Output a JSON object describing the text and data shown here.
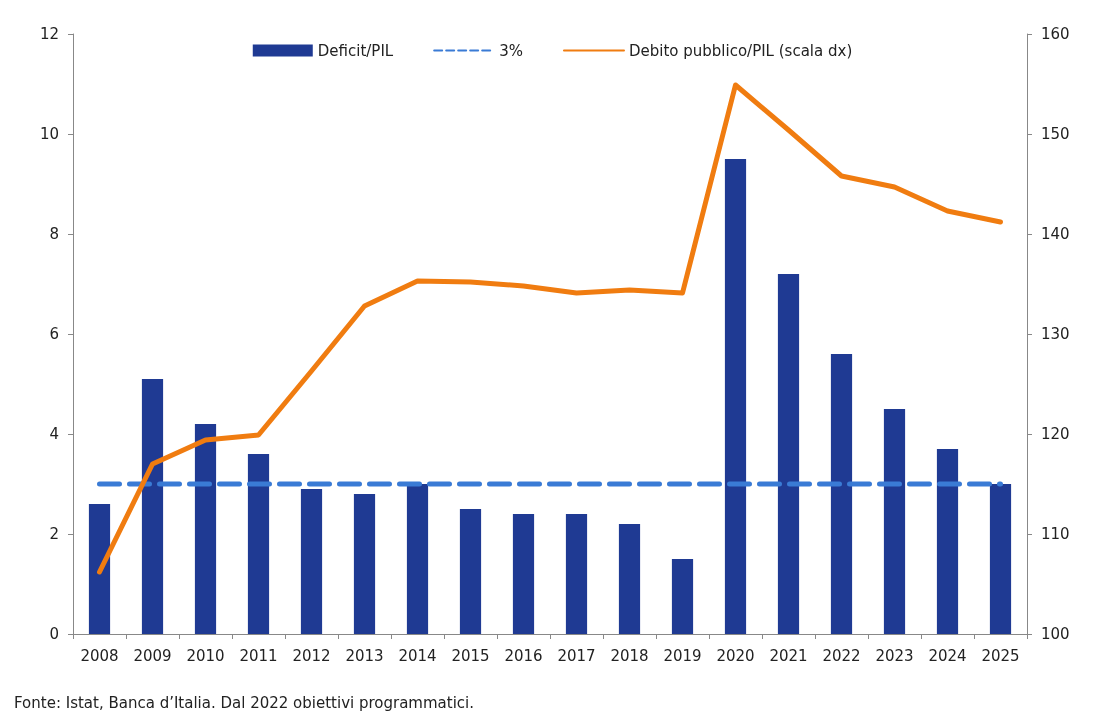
{
  "chart_data": {
    "type": "bar",
    "categories": [
      "2008",
      "2009",
      "2010",
      "2011",
      "2012",
      "2013",
      "2014",
      "2015",
      "2016",
      "2017",
      "2018",
      "2019",
      "2020",
      "2021",
      "2022",
      "2023",
      "2024",
      "2025"
    ],
    "series": [
      {
        "name": "Deficit/PIL",
        "color": "#1f3a93",
        "values": [
          2.6,
          5.1,
          4.2,
          3.6,
          2.9,
          2.8,
          3.0,
          2.5,
          2.4,
          2.4,
          2.2,
          1.5,
          9.5,
          7.2,
          5.6,
          4.5,
          3.7,
          3.0
        ]
      },
      {
        "name": "3%",
        "type": "line",
        "color": "#3a7bd5",
        "line_style": "dashed",
        "values": [
          3,
          3,
          3,
          3,
          3,
          3,
          3,
          3,
          3,
          3,
          3,
          3,
          3,
          3,
          3,
          3,
          3,
          3
        ]
      },
      {
        "name": "Debito pubblico/PIL (scala dx)",
        "type": "line",
        "axis": "y2",
        "color": "#f07c10",
        "line_style": "solid",
        "values": [
          106.2,
          117.0,
          119.4,
          119.9,
          126.3,
          132.8,
          135.3,
          135.2,
          134.8,
          134.1,
          134.4,
          134.1,
          154.9,
          150.4,
          145.8,
          144.7,
          142.3,
          141.2
        ]
      }
    ],
    "ylim": [
      0,
      12
    ],
    "yticks": [
      0,
      2,
      4,
      6,
      8,
      10,
      12
    ],
    "y2lim": [
      100,
      160
    ],
    "y2ticks": [
      100,
      110,
      120,
      130,
      140,
      150,
      160
    ],
    "grid": false,
    "legend": "top",
    "marker": "none",
    "annotations": [
      "Fonte: Istat, Banca d’Italia. Dal 2022 obiettivi programmatici."
    ]
  }
}
